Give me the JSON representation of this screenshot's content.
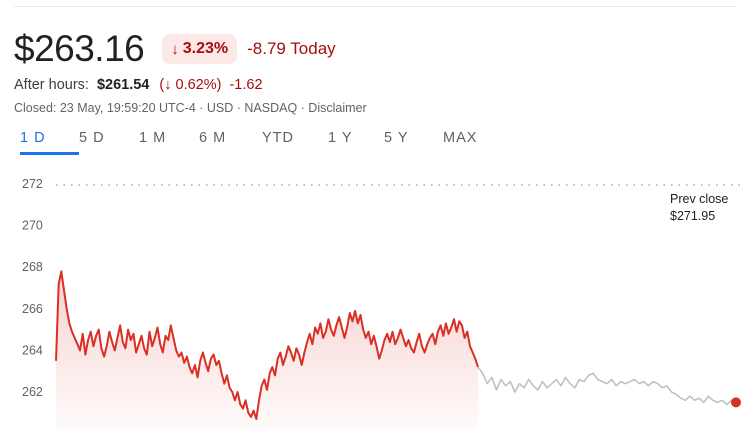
{
  "quote": {
    "price": "$263.16",
    "change_pct": "3.23%",
    "change_abs_today": "-8.79 Today",
    "down_arrow_icon": "arrow-down-icon"
  },
  "after_hours": {
    "label": "After hours:",
    "price": "$261.54",
    "pct": "0.62%",
    "change": "-1.62"
  },
  "closed_line": "Closed: 23 May, 19:59:20 UTC-4 · USD · NASDAQ · Disclaimer",
  "tabs": [
    {
      "label": "1 D",
      "active": true
    },
    {
      "label": "5 D",
      "active": false
    },
    {
      "label": "1 M",
      "active": false
    },
    {
      "label": "6 M",
      "active": false
    },
    {
      "label": "YTD",
      "active": false
    },
    {
      "label": "1 Y",
      "active": false
    },
    {
      "label": "5 Y",
      "active": false
    },
    {
      "label": "MAX",
      "active": false
    }
  ],
  "colors": {
    "down": "#d93025",
    "down_fill": "#fce8e6",
    "after_hours": "#bdc1c6",
    "accent": "#1a73e8"
  },
  "chart_data": {
    "type": "line",
    "ylim": [
      261,
      272.5
    ],
    "y_ticks": [
      272,
      270,
      268,
      266,
      264,
      262
    ],
    "prev_close": {
      "label": "Prev close",
      "value_label": "$271.95",
      "value": 271.95
    },
    "series": [
      {
        "session": "regular",
        "values": [
          263.5,
          267.2,
          267.8,
          266.9,
          266.0,
          265.3,
          264.9,
          264.6,
          264.3,
          264.0,
          264.8,
          263.8,
          264.5,
          264.9,
          264.2,
          264.7,
          265.0,
          264.1,
          263.7,
          264.2,
          264.9,
          264.4,
          264.0,
          264.6,
          265.2,
          264.4,
          264.1,
          265.0,
          264.5,
          264.8,
          263.9,
          264.3,
          264.7,
          264.1,
          263.8,
          264.9,
          264.2,
          264.6,
          265.1,
          264.3,
          263.9,
          264.7,
          264.5,
          265.2,
          264.6,
          264.0,
          263.7,
          263.9,
          263.4,
          263.7,
          263.2,
          262.9,
          263.3,
          262.7,
          263.5,
          263.9,
          263.4,
          263.0,
          263.6,
          263.8,
          263.3,
          263.5,
          262.9,
          262.4,
          262.8,
          262.2,
          262.0,
          261.6,
          262.0,
          261.4,
          261.2,
          261.6,
          261.0,
          260.8,
          261.1,
          260.7,
          261.6,
          262.3,
          262.6,
          262.1,
          262.9,
          263.2,
          262.8,
          263.6,
          263.9,
          263.3,
          263.7,
          264.2,
          263.9,
          263.5,
          264.1,
          263.8,
          263.3,
          263.9,
          264.4,
          264.8,
          264.3,
          265.1,
          264.8,
          265.3,
          264.6,
          264.9,
          265.5,
          265.0,
          264.7,
          265.2,
          265.6,
          265.1,
          264.6,
          265.1,
          265.8,
          265.4,
          265.9,
          265.3,
          265.7,
          265.0,
          264.6,
          264.9,
          264.3,
          264.7,
          264.2,
          263.6,
          264.0,
          264.5,
          264.8,
          264.4,
          264.9,
          264.3,
          264.6,
          265.0,
          264.6,
          264.2,
          264.5,
          264.1,
          263.9,
          264.4,
          264.8,
          264.2,
          263.9,
          264.3,
          264.6,
          264.8,
          264.3,
          264.9,
          265.2,
          264.7,
          265.3,
          264.8,
          265.1,
          265.5,
          264.9,
          265.4,
          265.2,
          264.6,
          264.9,
          264.2,
          263.9,
          263.6,
          263.2
        ]
      },
      {
        "session": "after_hours",
        "values": [
          263.2,
          262.9,
          262.4,
          262.7,
          262.1,
          262.6,
          262.3,
          262.5,
          262.0,
          262.4,
          262.2,
          262.6,
          262.3,
          262.1,
          262.5,
          262.2,
          262.4,
          262.6,
          262.3,
          262.7,
          262.4,
          262.2,
          262.6,
          262.5,
          262.8,
          262.9,
          262.6,
          262.5,
          262.4,
          262.6,
          262.3,
          262.5,
          262.4,
          262.5,
          262.6,
          262.4,
          262.5,
          262.3,
          262.5,
          262.4,
          262.2,
          262.3,
          262.0,
          261.9,
          261.7,
          261.6,
          261.8,
          261.6,
          261.7,
          261.5,
          261.8,
          261.6,
          261.5,
          261.6,
          261.4,
          261.6,
          261.5
        ]
      }
    ]
  }
}
